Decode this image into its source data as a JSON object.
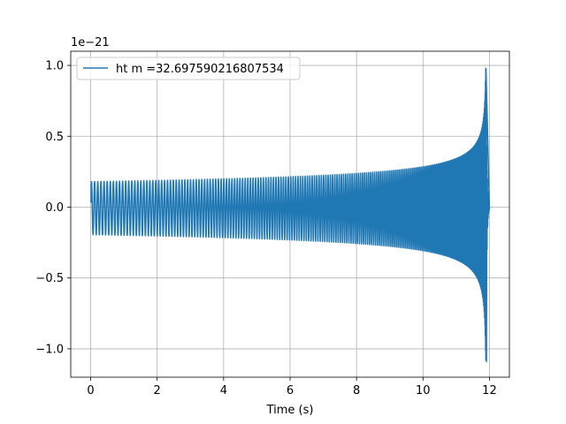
{
  "chart_data": {
    "type": "line",
    "title": "",
    "xlabel": "Time (s)",
    "ylabel": "",
    "y_offset_label": "1e−21",
    "xlim": [
      -0.6,
      12.6
    ],
    "ylim": [
      -1.2,
      1.1
    ],
    "x_ticks": [
      0,
      2,
      4,
      6,
      8,
      10,
      12
    ],
    "x_tick_labels": [
      "0",
      "2",
      "4",
      "6",
      "8",
      "10",
      "12"
    ],
    "y_ticks": [
      -1.0,
      -0.5,
      0.0,
      0.5,
      1.0
    ],
    "y_tick_labels": [
      "−1.0",
      "−0.5",
      "0.0",
      "0.5",
      "1.0"
    ],
    "grid": true,
    "legend_position": "top-left",
    "series": [
      {
        "name": "ht m =32.697590216807534",
        "color": "#1f77b4",
        "description": "chirp waveform",
        "t_start": 0.0,
        "t_merger": 11.9,
        "t_end": 12.0,
        "initial_amplitude": 0.18,
        "initial_cycles_per_second": 10.5,
        "peak_max": 0.98,
        "peak_min": -1.09
      }
    ]
  }
}
